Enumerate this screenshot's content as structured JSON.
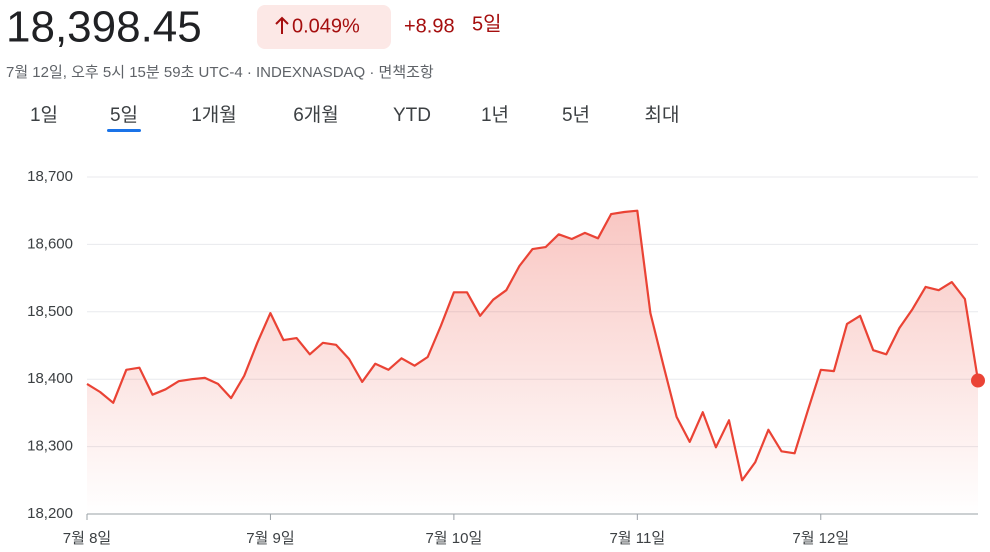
{
  "header": {
    "price": "18,398.45",
    "change_percent": "0.049%",
    "change": "+8.98",
    "period": "5일",
    "subtitle": "7월 12일, 오후 5시 15분 59초 UTC-4 · INDEXNASDAQ · 면책조항"
  },
  "tabs": {
    "items": [
      "1일",
      "5일",
      "1개월",
      "6개월",
      "YTD",
      "1년",
      "5년",
      "최대"
    ],
    "active": 1
  },
  "chart_data": {
    "type": "line",
    "color": "#ea4335",
    "grid": true,
    "x": [
      0,
      1,
      2,
      3,
      4,
      5,
      6,
      7,
      8,
      9,
      10,
      11,
      12,
      13,
      14,
      15,
      16,
      17,
      18,
      19,
      20,
      21,
      22,
      23,
      24,
      25,
      26,
      27,
      28,
      29,
      30,
      31,
      32,
      33,
      34,
      35,
      36,
      37,
      38,
      39,
      40,
      41,
      42,
      43,
      44,
      45,
      46,
      47,
      48,
      49,
      50,
      51,
      52,
      53,
      54,
      55,
      56,
      57,
      58,
      59,
      60,
      61,
      62,
      63,
      64,
      65,
      66,
      67,
      68
    ],
    "values": [
      18393,
      18381,
      18365,
      18414,
      18417,
      18377,
      18385,
      18397,
      18400,
      18402,
      18393,
      18372,
      18405,
      18454,
      18498,
      18458,
      18461,
      18437,
      18454,
      18451,
      18430,
      18396,
      18423,
      18414,
      18431,
      18420,
      18433,
      18479,
      18529,
      18529,
      18494,
      18518,
      18532,
      18568,
      18593,
      18596,
      18615,
      18608,
      18617,
      18609,
      18645,
      18648,
      18650,
      18498,
      18420,
      18344,
      18307,
      18351,
      18299,
      18339,
      18250,
      18277,
      18325,
      18293,
      18290,
      18353,
      18414,
      18412,
      18482,
      18494,
      18443,
      18437,
      18476,
      18504,
      18537,
      18532,
      18544,
      18519,
      18398
    ],
    "xlim": [
      0,
      68
    ],
    "xticks": [
      {
        "value": 0,
        "label": "7월 8일"
      },
      {
        "value": 14,
        "label": "7월 9일"
      },
      {
        "value": 28,
        "label": "7월 10일"
      },
      {
        "value": 42,
        "label": "7월 11일"
      },
      {
        "value": 56,
        "label": "7월 12일"
      }
    ],
    "ylim": [
      18200,
      18700
    ],
    "yticks": [
      {
        "value": 18200,
        "label": "18,200"
      },
      {
        "value": 18300,
        "label": "18,300"
      },
      {
        "value": 18400,
        "label": "18,400"
      },
      {
        "value": 18500,
        "label": "18,500"
      },
      {
        "value": 18600,
        "label": "18,600"
      },
      {
        "value": 18700,
        "label": "18,700"
      }
    ]
  }
}
